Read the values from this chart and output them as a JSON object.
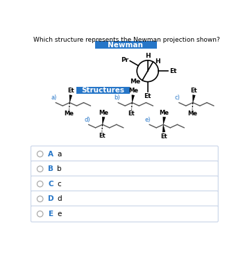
{
  "title": "Which structure represents the Newman projection shown?",
  "newman_label": "Newman",
  "structures_label": "Structures",
  "blue_bg": "#2676C8",
  "label_blue": "#2676C8",
  "bg_color": "#ffffff",
  "border_color": "#c8d4e8",
  "title_fontsize": 6.5,
  "banner_fontsize": 7.5,
  "struct_fontsize": 6.0,
  "answer_options": [
    "A",
    "B",
    "C",
    "D",
    "E"
  ],
  "answer_labels": [
    "a",
    "b",
    "c",
    "d",
    "e"
  ]
}
